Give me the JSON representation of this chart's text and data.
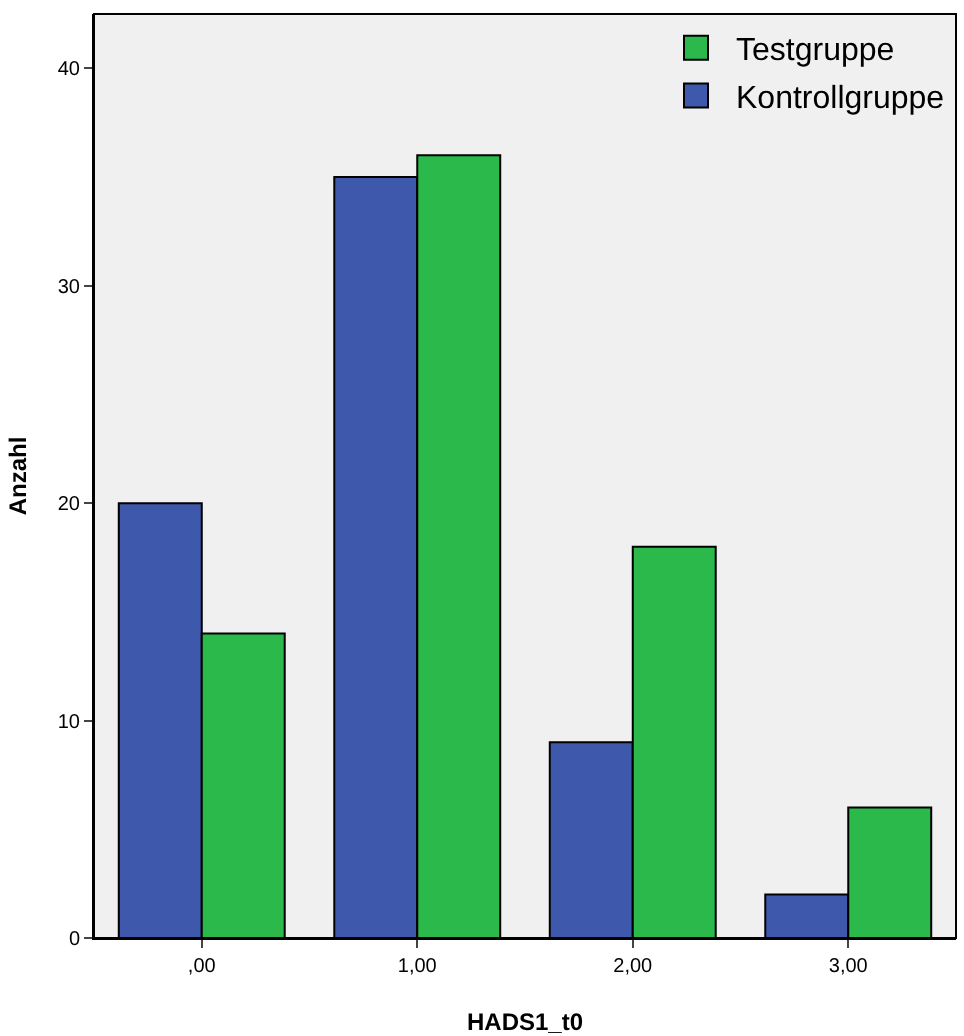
{
  "chart_data": {
    "type": "bar",
    "xlabel": "HADS1_t0",
    "ylabel": "Anzahl",
    "categories": [
      ",00",
      "1,00",
      "2,00",
      "3,00"
    ],
    "series": [
      {
        "name": "Kontrollgruppe",
        "color": "#3e58ac",
        "values": [
          20,
          35,
          9,
          2
        ]
      },
      {
        "name": "Testgruppe",
        "color": "#2ab94a",
        "values": [
          14,
          36,
          18,
          6
        ]
      }
    ],
    "ylim": [
      0,
      42.5
    ],
    "yticks": [
      0,
      10,
      20,
      30,
      40
    ],
    "grid": false,
    "legend": "top right"
  }
}
